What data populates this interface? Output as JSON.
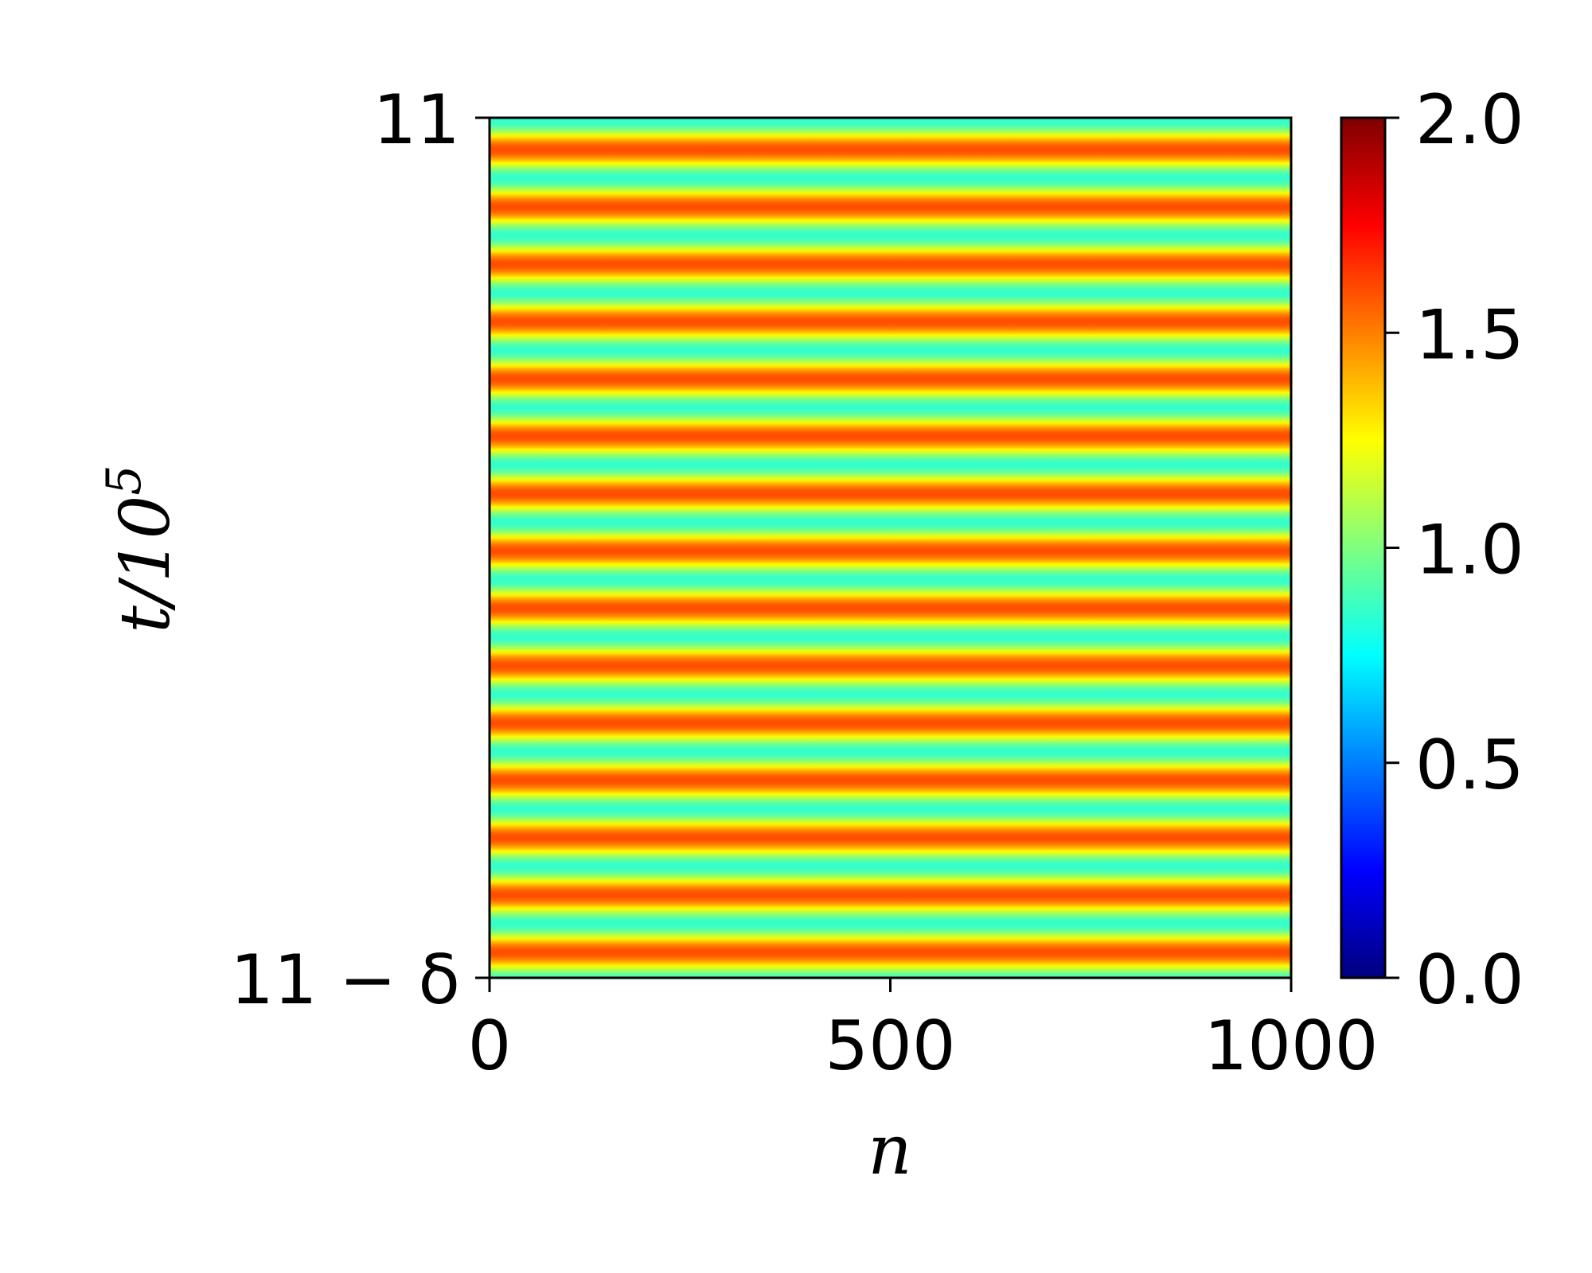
{
  "chart_data": {
    "type": "heatmap",
    "title": "",
    "xlabel": "n",
    "ylabel": {
      "base": "t/10",
      "exponent": "5"
    },
    "x": {
      "range": [
        0,
        1000
      ],
      "ticks": [
        0,
        500,
        1000
      ],
      "tick_labels": [
        "0",
        "500",
        "1000"
      ]
    },
    "y": {
      "ticks": [
        "11 − δ",
        "11"
      ],
      "bottom_label": "11 − δ",
      "top_label": "11"
    },
    "stripe_orientation": "horizontal",
    "stripe_periods": 15,
    "value_min": 0.85,
    "value_max": 1.6,
    "colormap": "jet",
    "colorbar": {
      "range": [
        0.0,
        2.0
      ],
      "ticks": [
        0.0,
        0.5,
        1.0,
        1.5,
        2.0
      ],
      "tick_labels": [
        "0.0",
        "0.5",
        "1.0",
        "1.5",
        "2.0"
      ],
      "colors": [
        "#00007f",
        "#0000ff",
        "#007fff",
        "#00ffff",
        "#7fff7f",
        "#ffff00",
        "#ff7f00",
        "#ff0000",
        "#7f0000"
      ]
    }
  }
}
